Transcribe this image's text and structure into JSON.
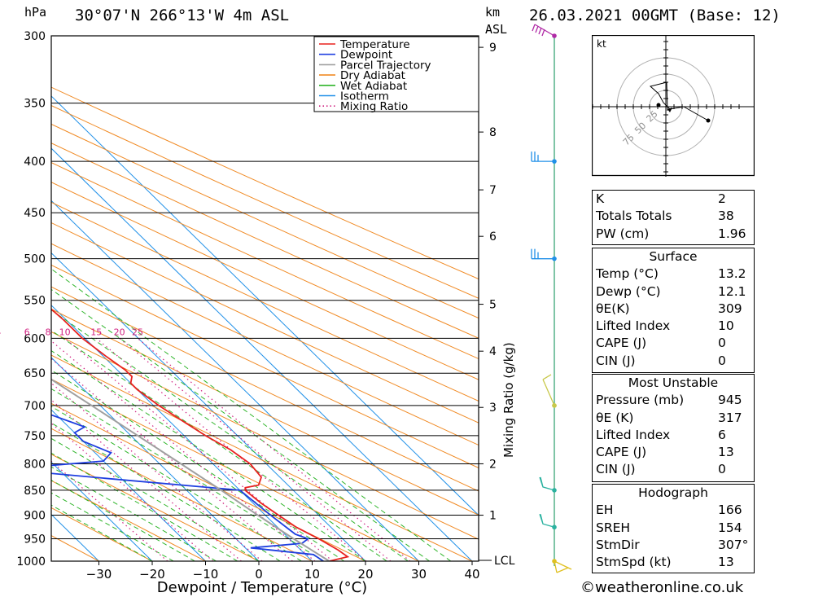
{
  "header": {
    "hpa_label": "hPa",
    "location": "30°07'N  266°13'W  4m  ASL",
    "km_label": "km",
    "asl_label": "ASL",
    "datetime": "26.03.2021  00GMT  (Base: 12)"
  },
  "legend": {
    "items": [
      {
        "label": "Temperature",
        "color": "#e8221f"
      },
      {
        "label": "Dewpoint",
        "color": "#1f3fe0"
      },
      {
        "label": "Parcel Trajectory",
        "color": "#a0a0a0"
      },
      {
        "label": "Dry Adiabat",
        "color": "#f08a24"
      },
      {
        "label": "Wet Adiabat",
        "color": "#2fb52a"
      },
      {
        "label": "Isotherm",
        "color": "#2090e8"
      },
      {
        "label": "Mixing Ratio",
        "color": "#d02080"
      }
    ]
  },
  "chart_data": {
    "type": "line",
    "title": "Skew-T log-P diagram",
    "xlabel": "Dewpoint / Temperature (°C)",
    "ylabel": "hPa",
    "xlim": [
      -40,
      40
    ],
    "x_ticks": [
      "−30",
      "−20",
      "−10",
      "0",
      "10",
      "20",
      "30",
      "40"
    ],
    "x_tick_values": [
      -30,
      -20,
      -10,
      0,
      10,
      20,
      30,
      40
    ],
    "pressure_levels": [
      300,
      350,
      400,
      450,
      500,
      550,
      600,
      650,
      700,
      750,
      800,
      850,
      900,
      950,
      1000
    ],
    "km_ticks": [
      "9",
      "8",
      "7",
      "6",
      "5",
      "4",
      "3",
      "2",
      "1"
    ],
    "km_tick_pressures": [
      308,
      374,
      427,
      475,
      555,
      618,
      703,
      800,
      900
    ],
    "lcl_label": "LCL",
    "lcl_pressure": 1000,
    "mixing_ratio_label": "Mixing Ratio (g/kg)",
    "mixing_ratio_values": [
      "1",
      "2",
      "3",
      "4",
      "6",
      "8",
      "10",
      "15",
      "20",
      "25"
    ],
    "series": [
      {
        "name": "Temperature",
        "points": [
          [
            1000,
            13.2
          ],
          [
            990,
            17.5
          ],
          [
            975,
            17.0
          ],
          [
            950,
            15.5
          ],
          [
            925,
            13.5
          ],
          [
            900,
            12.5
          ],
          [
            875,
            11.5
          ],
          [
            850,
            11.0
          ],
          [
            845,
            11.5
          ],
          [
            840,
            14.5
          ],
          [
            825,
            16.5
          ],
          [
            800,
            17.0
          ],
          [
            775,
            16.0
          ],
          [
            750,
            14.0
          ],
          [
            725,
            12.5
          ],
          [
            700,
            11.0
          ],
          [
            675,
            10.0
          ],
          [
            665,
            10.0
          ],
          [
            655,
            11.5
          ],
          [
            645,
            11.5
          ],
          [
            625,
            10.5
          ],
          [
            600,
            9.5
          ],
          [
            575,
            9.5
          ],
          [
            550,
            9.0
          ],
          [
            525,
            7.5
          ],
          [
            500,
            6.0
          ],
          [
            475,
            4.8
          ],
          [
            450,
            3.5
          ],
          [
            425,
            2.0
          ],
          [
            400,
            -0.5
          ],
          [
            375,
            -3.0
          ],
          [
            362,
            -4.5
          ],
          [
            350,
            -4.5
          ],
          [
            325,
            -7.0
          ],
          [
            300,
            -11.0
          ]
        ]
      },
      {
        "name": "Dewpoint",
        "points": [
          [
            1000,
            12.1
          ],
          [
            985,
            11.5
          ],
          [
            970,
            1.0
          ],
          [
            960,
            11.5
          ],
          [
            950,
            13.5
          ],
          [
            940,
            12.0
          ],
          [
            900,
            11.0
          ],
          [
            850,
            10.0
          ],
          [
            830,
            -10.0
          ],
          [
            810,
            -30.0
          ],
          [
            795,
            -10.0
          ],
          [
            780,
            -7.0
          ],
          [
            760,
            -10.0
          ],
          [
            745,
            -10.0
          ],
          [
            735,
            -7.0
          ],
          [
            715,
            -11.0
          ],
          [
            700,
            -12.0
          ],
          [
            680,
            -7.0
          ],
          [
            665,
            -15.0
          ],
          [
            650,
            -18.5
          ],
          [
            635,
            -4.0
          ],
          [
            620,
            -17.0
          ],
          [
            600,
            -14.0
          ],
          [
            590,
            5.0
          ],
          [
            575,
            -1.5
          ],
          [
            560,
            -3.0
          ],
          [
            550,
            10.5
          ],
          [
            535,
            10.0
          ],
          [
            525,
            8.0
          ],
          [
            510,
            8.0
          ],
          [
            500,
            8.5
          ],
          [
            490,
            8.5
          ],
          [
            475,
            4.0
          ],
          [
            460,
            5.0
          ],
          [
            450,
            3.0
          ],
          [
            440,
            -2.0
          ],
          [
            430,
            -1.0
          ],
          [
            420,
            -2.0
          ],
          [
            400,
            -5.0
          ],
          [
            385,
            -1.0
          ],
          [
            370,
            -3.0
          ],
          [
            355,
            -9.0
          ],
          [
            345,
            -6.0
          ],
          [
            330,
            -11.5
          ],
          [
            315,
            -12.0
          ],
          [
            305,
            -8.0
          ],
          [
            300,
            -8.0
          ]
        ]
      },
      {
        "name": "Parcel Trajectory",
        "points": [
          [
            1000,
            13.2
          ],
          [
            950,
            10.8
          ],
          [
            900,
            8.6
          ],
          [
            850,
            6.5
          ],
          [
            800,
            4.0
          ],
          [
            750,
            1.3
          ],
          [
            700,
            -1.6
          ],
          [
            650,
            -4.8
          ],
          [
            600,
            -8.5
          ],
          [
            550,
            -12.5
          ],
          [
            500,
            -17.5
          ],
          [
            450,
            -23.0
          ],
          [
            400,
            -29.5
          ],
          [
            350,
            -37.5
          ],
          [
            310,
            -45.0
          ]
        ]
      }
    ],
    "wind_barbs_pressures": [
      300,
      400,
      500,
      700,
      850,
      925,
      1000
    ]
  },
  "hodograph": {
    "unit": "kt",
    "ring_labels": [
      "25",
      "50",
      "75"
    ]
  },
  "indices": [
    {
      "label": "K",
      "value": "2"
    },
    {
      "label": "Totals Totals",
      "value": "38"
    },
    {
      "label": "PW (cm)",
      "value": "1.96"
    }
  ],
  "surface": {
    "title": "Surface",
    "rows": [
      {
        "label": "Temp (°C)",
        "value": "13.2"
      },
      {
        "label": "Dewp (°C)",
        "value": "12.1"
      },
      {
        "label": "θE(K)",
        "value": "309"
      },
      {
        "label": "Lifted Index",
        "value": "10"
      },
      {
        "label": "CAPE (J)",
        "value": "0"
      },
      {
        "label": "CIN (J)",
        "value": "0"
      }
    ]
  },
  "most_unstable": {
    "title": "Most Unstable",
    "rows": [
      {
        "label": "Pressure (mb)",
        "value": "945"
      },
      {
        "label": "θE (K)",
        "value": "317"
      },
      {
        "label": "Lifted Index",
        "value": "6"
      },
      {
        "label": "CAPE (J)",
        "value": "13"
      },
      {
        "label": "CIN (J)",
        "value": "0"
      }
    ]
  },
  "hodograph_table": {
    "title": "Hodograph",
    "rows": [
      {
        "label": "EH",
        "value": "166"
      },
      {
        "label": "SREH",
        "value": "154"
      },
      {
        "label": "StmDir",
        "value": "307°"
      },
      {
        "label": "StmSpd (kt)",
        "value": "13"
      }
    ]
  },
  "copyright": "©weatheronline.co.uk"
}
